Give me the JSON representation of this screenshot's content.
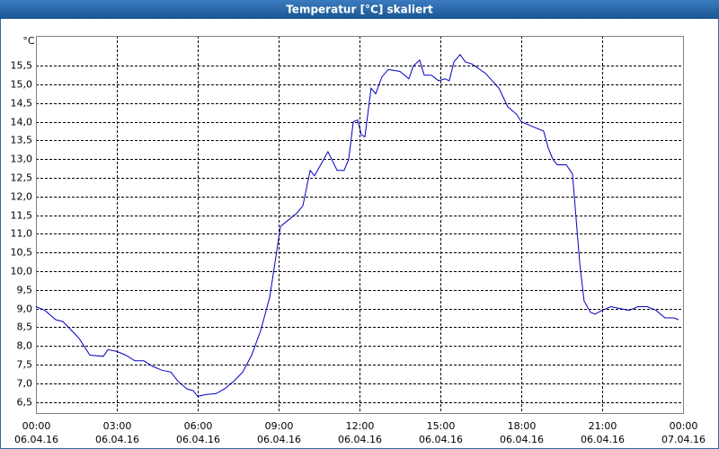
{
  "chart_data": {
    "type": "line",
    "title": "Temperatur [°C] skaliert",
    "y_label": "°C",
    "x": [
      0,
      0.33,
      0.73,
      1,
      1.27,
      1.6,
      2,
      2.5,
      2.67,
      3,
      3.33,
      3.67,
      4,
      4.33,
      4.67,
      5,
      5.27,
      5.6,
      5.83,
      6,
      6.33,
      6.67,
      7,
      7.33,
      7.67,
      8,
      8.33,
      8.67,
      9.07,
      9.33,
      9.67,
      9.9,
      10.17,
      10.33,
      10.6,
      10.83,
      11.17,
      11.43,
      11.6,
      11.77,
      11.93,
      12.07,
      12.2,
      12.43,
      12.6,
      12.83,
      13.07,
      13.5,
      13.83,
      14,
      14.23,
      14.4,
      14.67,
      14.93,
      15.17,
      15.33,
      15.5,
      15.73,
      15.93,
      16.17,
      16.67,
      17.17,
      17.5,
      17.83,
      18,
      18.5,
      18.83,
      19,
      19.17,
      19.33,
      19.67,
      19.9,
      20.17,
      20.33,
      20.57,
      20.73,
      21,
      21.33,
      21.67,
      22,
      22.33,
      22.67,
      23,
      23.33,
      23.67,
      23.83
    ],
    "series": [
      {
        "name": "Temperatur",
        "color": "#0000c0",
        "values": [
          9.05,
          8.95,
          8.7,
          8.65,
          8.45,
          8.2,
          7.75,
          7.72,
          7.9,
          7.85,
          7.75,
          7.6,
          7.6,
          7.45,
          7.35,
          7.3,
          7.05,
          6.85,
          6.8,
          6.65,
          6.7,
          6.72,
          6.85,
          7.05,
          7.3,
          7.75,
          8.4,
          9.3,
          11.2,
          11.35,
          11.55,
          11.75,
          12.7,
          12.55,
          12.9,
          13.2,
          12.7,
          12.7,
          13.0,
          14.0,
          14.05,
          13.65,
          13.6,
          14.9,
          14.75,
          15.2,
          15.4,
          15.35,
          15.15,
          15.5,
          15.65,
          15.25,
          15.25,
          15.1,
          15.15,
          15.1,
          15.6,
          15.8,
          15.6,
          15.55,
          15.3,
          14.9,
          14.4,
          14.2,
          14.0,
          13.85,
          13.75,
          13.3,
          13.0,
          12.85,
          12.85,
          12.6,
          10.2,
          9.2,
          8.9,
          8.85,
          8.95,
          9.05,
          9.0,
          8.95,
          9.05,
          9.05,
          8.95,
          8.75,
          8.75,
          8.7
        ]
      }
    ],
    "xlim": [
      0,
      24
    ],
    "xticks": [
      {
        "value": 0,
        "label": "00:00",
        "date": "06.04.16"
      },
      {
        "value": 3,
        "label": "03:00",
        "date": "06.04.16"
      },
      {
        "value": 6,
        "label": "06:00",
        "date": "06.04.16"
      },
      {
        "value": 9,
        "label": "09:00",
        "date": "06.04.16"
      },
      {
        "value": 12,
        "label": "12:00",
        "date": "06.04.16"
      },
      {
        "value": 15,
        "label": "15:00",
        "date": "06.04.16"
      },
      {
        "value": 18,
        "label": "18:00",
        "date": "06.04.16"
      },
      {
        "value": 21,
        "label": "21:00",
        "date": "06.04.16"
      },
      {
        "value": 24,
        "label": "00:00",
        "date": "07.04.16"
      }
    ],
    "ylim": [
      6.2,
      16.3
    ],
    "yticks": [
      {
        "value": 6.5,
        "label": "6,5"
      },
      {
        "value": 7,
        "label": "7,0"
      },
      {
        "value": 7.5,
        "label": "7,5"
      },
      {
        "value": 8,
        "label": "8,0"
      },
      {
        "value": 8.5,
        "label": "8,5"
      },
      {
        "value": 9,
        "label": "9,0"
      },
      {
        "value": 9.5,
        "label": "9,5"
      },
      {
        "value": 10,
        "label": "10,0"
      },
      {
        "value": 10.5,
        "label": "10,5"
      },
      {
        "value": 11,
        "label": "11,0"
      },
      {
        "value": 11.5,
        "label": "11,5"
      },
      {
        "value": 12,
        "label": "12,0"
      },
      {
        "value": 12.5,
        "label": "12,5"
      },
      {
        "value": 13,
        "label": "13,0"
      },
      {
        "value": 13.5,
        "label": "13,5"
      },
      {
        "value": 14,
        "label": "14,0"
      },
      {
        "value": 14.5,
        "label": "14,5"
      },
      {
        "value": 15,
        "label": "15,0"
      },
      {
        "value": 15.5,
        "label": "15,5"
      }
    ],
    "grid": true
  }
}
